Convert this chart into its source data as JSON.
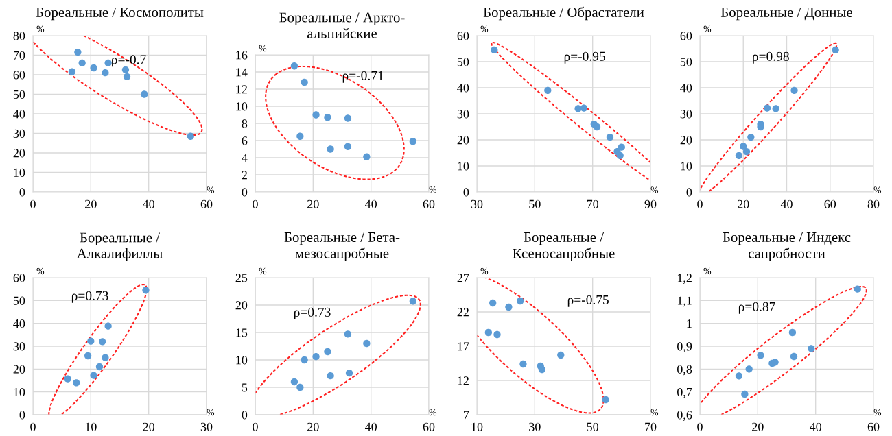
{
  "chart_data": [
    {
      "type": "scatter",
      "title": "Бореальные / Космополиты",
      "xlabel": "%",
      "ylabel": "%",
      "color": "#5b9bd5",
      "grid": true,
      "marker": "circle",
      "annotations": [
        "ρ=-0.7"
      ],
      "xlim": [
        0,
        60
      ],
      "xticks": [
        0,
        20,
        40,
        60
      ],
      "ylim": [
        0,
        80
      ],
      "yticks": [
        0,
        10,
        20,
        30,
        40,
        50,
        60,
        70,
        80
      ],
      "x": [
        13.5,
        15.5,
        17,
        21,
        25,
        26,
        32,
        32.5,
        38.5,
        54.5
      ],
      "values": [
        61.5,
        71.5,
        66,
        63.5,
        61,
        66,
        62.5,
        59,
        50,
        28.5
      ]
    },
    {
      "type": "scatter",
      "title": "Бореальные / Аркто-\nальпийские",
      "xlabel": "%",
      "ylabel": "%",
      "color": "#5b9bd5",
      "grid": true,
      "marker": "circle",
      "annotations": [
        "ρ=-0.71"
      ],
      "xlim": [
        0,
        60
      ],
      "xticks": [
        0,
        20,
        40,
        60
      ],
      "ylim": [
        0,
        16
      ],
      "yticks": [
        0,
        2,
        4,
        6,
        8,
        10,
        12,
        14,
        16
      ],
      "x": [
        13.5,
        17,
        15.5,
        21,
        25,
        32,
        26,
        32,
        38.5,
        54.5
      ],
      "values": [
        14.7,
        12.8,
        6.5,
        9,
        8.7,
        8.6,
        5,
        5.3,
        4.1,
        5.9
      ]
    },
    {
      "type": "scatter",
      "title": "Бореальные / Обрастатели",
      "xlabel": "%",
      "ylabel": "%",
      "color": "#5b9bd5",
      "grid": true,
      "marker": "circle",
      "annotations": [
        "ρ=-0.95"
      ],
      "xlim": [
        30,
        90
      ],
      "xticks": [
        30,
        50,
        70,
        90
      ],
      "ylim": [
        0,
        60
      ],
      "yticks": [
        0,
        10,
        20,
        30,
        40,
        50,
        60
      ],
      "x": [
        36,
        54.5,
        65,
        67,
        70.5,
        71.5,
        76,
        78.5,
        80,
        79.5
      ],
      "values": [
        54.5,
        39,
        32,
        32.2,
        26,
        25,
        21,
        15.5,
        17.2,
        14
      ]
    },
    {
      "type": "scatter",
      "title": "Бореальные / Донные",
      "xlabel": "%",
      "ylabel": "%",
      "color": "#5b9bd5",
      "grid": true,
      "marker": "circle",
      "annotations": [
        "ρ=0.98"
      ],
      "xlim": [
        0,
        80
      ],
      "xticks": [
        0,
        20,
        40,
        60,
        80
      ],
      "ylim": [
        0,
        60
      ],
      "yticks": [
        0,
        10,
        20,
        30,
        40,
        50,
        60
      ],
      "x": [
        18,
        20,
        21.5,
        23.5,
        28,
        28,
        31,
        35,
        43.5,
        62.5
      ],
      "values": [
        14,
        17.5,
        15.5,
        21,
        25,
        26,
        32.2,
        32,
        39,
        54.5
      ]
    },
    {
      "type": "scatter",
      "title": "Бореальные /\nАлкалифиллы",
      "xlabel": "%",
      "ylabel": "%",
      "color": "#5b9bd5",
      "grid": true,
      "marker": "circle",
      "annotations": [
        "ρ=0.73"
      ],
      "xlim": [
        0,
        30
      ],
      "xticks": [
        0,
        10,
        20,
        30
      ],
      "ylim": [
        0,
        60
      ],
      "yticks": [
        0,
        10,
        20,
        30,
        40,
        50,
        60
      ],
      "x": [
        6,
        7.5,
        9.5,
        10,
        10.5,
        11.5,
        12,
        12.5,
        13,
        19.5
      ],
      "values": [
        15.7,
        14,
        25.8,
        32.2,
        17.2,
        21,
        32,
        25,
        38.8,
        54.5
      ]
    },
    {
      "type": "scatter",
      "title": "Бореальные / Бета-\nмезосапробные",
      "xlabel": "%",
      "ylabel": "%",
      "color": "#5b9bd5",
      "grid": true,
      "marker": "circle",
      "annotations": [
        "ρ=0.73"
      ],
      "xlim": [
        0,
        60
      ],
      "xticks": [
        0,
        20,
        40,
        60
      ],
      "ylim": [
        0,
        25
      ],
      "yticks": [
        0,
        5,
        10,
        15,
        20,
        25
      ],
      "x": [
        13.5,
        15.5,
        17,
        21,
        25,
        26,
        32,
        32.5,
        38.5,
        54.5
      ],
      "values": [
        6,
        5,
        10,
        10.6,
        11.5,
        7.1,
        14.7,
        7.6,
        13,
        20.7
      ]
    },
    {
      "type": "scatter",
      "title": "Бореальные /\nКсеносапробные",
      "xlabel": "%",
      "ylabel": "%",
      "color": "#5b9bd5",
      "grid": true,
      "marker": "circle",
      "annotations": [
        "ρ=-0.75"
      ],
      "xlim": [
        10,
        70
      ],
      "xticks": [
        10,
        30,
        50,
        70
      ],
      "ylim": [
        7,
        27
      ],
      "yticks": [
        7,
        12,
        17,
        22,
        27
      ],
      "x": [
        14,
        15.5,
        17,
        21,
        25,
        26,
        32,
        32.5,
        39,
        54.5
      ],
      "values": [
        19,
        23.3,
        18.7,
        22.7,
        23.6,
        14.4,
        14.1,
        13.6,
        15.7,
        9.2
      ]
    },
    {
      "type": "scatter",
      "title": "Бореальные / Индекс\nсапробности",
      "xlabel": "%",
      "ylabel": "%",
      "color": "#5b9bd5",
      "grid": true,
      "marker": "circle",
      "annotations": [
        "ρ=0.87"
      ],
      "xlim": [
        0,
        60
      ],
      "xticks": [
        0,
        20,
        40,
        60
      ],
      "ylim": [
        0.6,
        1.2
      ],
      "yticks": [
        {
          "value": 0.6,
          "label": "0,6"
        },
        {
          "value": 0.7,
          "label": "0,7"
        },
        {
          "value": 0.8,
          "label": "0,8"
        },
        {
          "value": 0.9,
          "label": "0,9"
        },
        {
          "value": 1,
          "label": "1"
        },
        {
          "value": 1.1,
          "label": "1,1"
        },
        {
          "value": 1.2,
          "label": "1,2"
        }
      ],
      "x": [
        13.5,
        15.5,
        17,
        21,
        25,
        26,
        32,
        32.5,
        38.5,
        54.5
      ],
      "values": [
        0.77,
        0.69,
        0.8,
        0.86,
        0.825,
        0.83,
        0.96,
        0.855,
        0.89,
        1.15
      ]
    }
  ]
}
